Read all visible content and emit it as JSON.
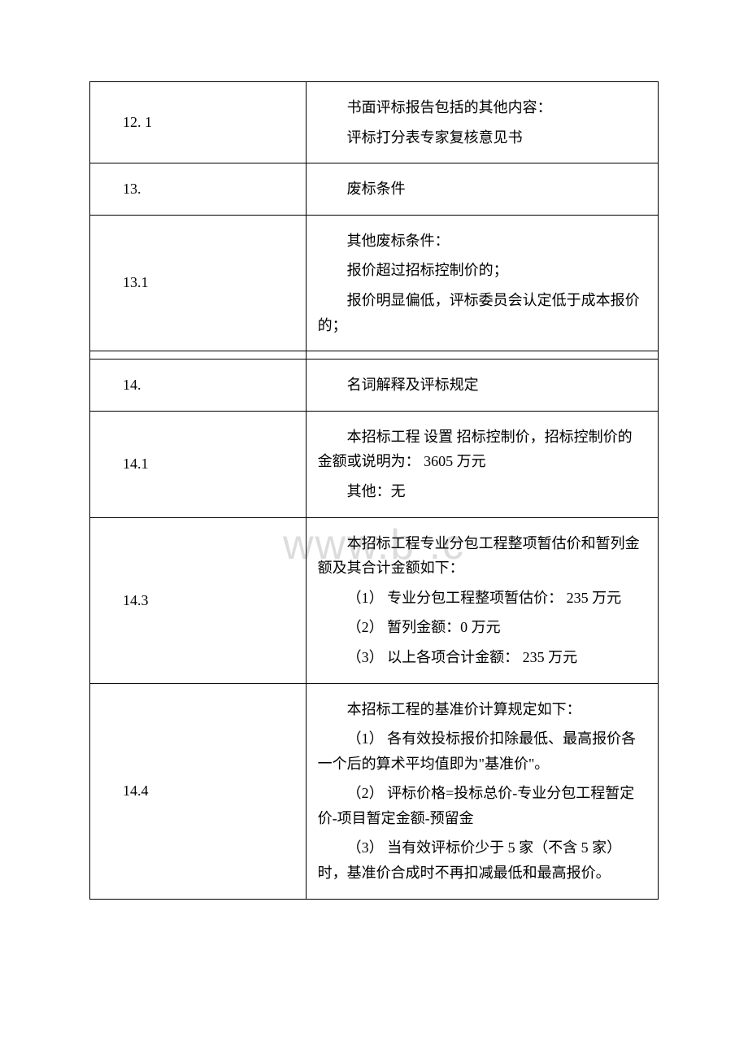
{
  "watermark": "www.b        .c",
  "rows": {
    "r1": {
      "num": "12. 1",
      "p1": "书面评标报告包括的其他内容：",
      "p2": "评标打分表专家复核意见书"
    },
    "r2": {
      "num": "13.",
      "p1": "废标条件"
    },
    "r3": {
      "num": "13.1",
      "p1": "其他废标条件：",
      "p2": "报价超过招标控制价的；",
      "p3": "报价明显偏低，评标委员会认定低于成本报价的；"
    },
    "r4": {
      "num": "14.",
      "p1": "名词解释及评标规定"
    },
    "r5": {
      "num": "14.1",
      "p1": "本招标工程 设置 招标控制价，招标控制价的金额或说明为： 3605 万元",
      "p2": "其他：无"
    },
    "r6": {
      "num": "14.3",
      "p1": "本招标工程专业分包工程整项暂估价和暂列金额及其合计金额如下：",
      "p2": "（1） 专业分包工程整项暂估价： 235 万元",
      "p3": "（2） 暂列金额：0 万元",
      "p4": "（3） 以上各项合计金额： 235 万元"
    },
    "r7": {
      "num": "14.4",
      "p1": "本招标工程的基准价计算规定如下：",
      "p2": "（1） 各有效投标报价扣除最低、最高报价各一个后的算术平均值即为\"基准价\"。",
      "p3": "（2） 评标价格=投标总价-专业分包工程暂定价-项目暂定金额-预留金",
      "p4": "（3） 当有效评标价少于 5 家（不含 5 家）时，基准价合成时不再扣减最低和最高报价。"
    }
  },
  "colors": {
    "border": "#000000",
    "text": "#000000",
    "background": "#ffffff",
    "watermark": "#dcdcdc"
  },
  "fontsize_body": 18,
  "fontsize_watermark": 52
}
